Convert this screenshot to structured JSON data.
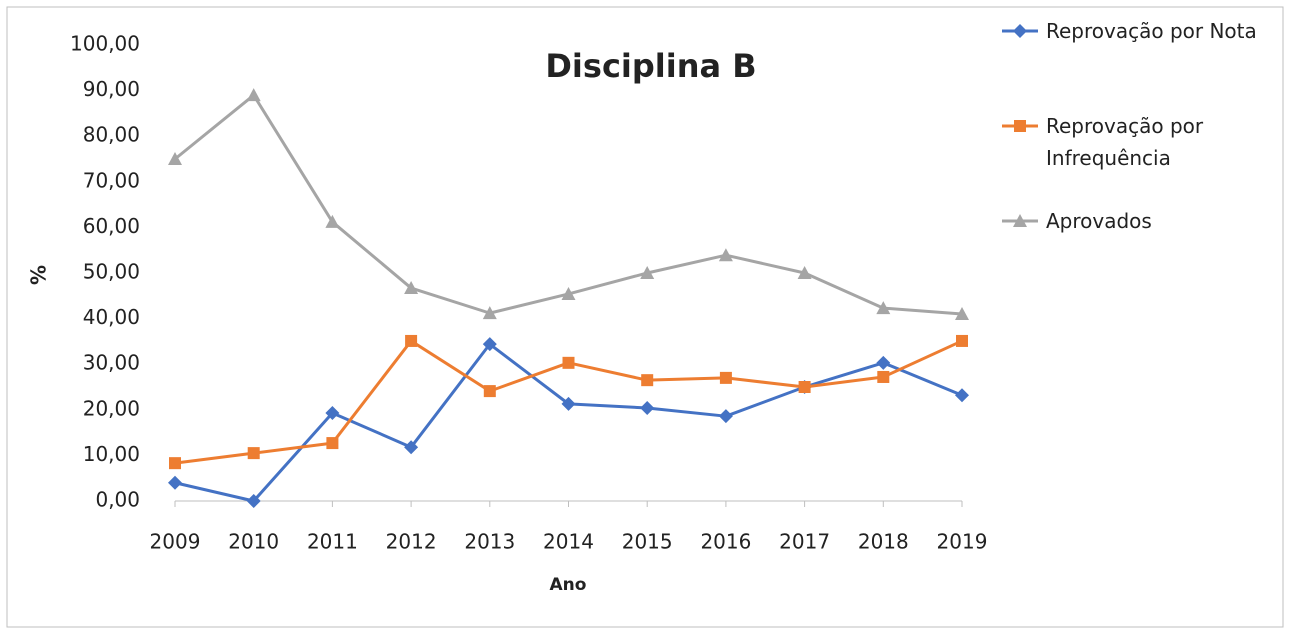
{
  "chart_data": {
    "type": "line",
    "title": "Disciplina B",
    "x_label": "Ano",
    "y_label": "%",
    "categories": [
      "2009",
      "2010",
      "2011",
      "2012",
      "2013",
      "2014",
      "2015",
      "2016",
      "2017",
      "2018",
      "2019"
    ],
    "series": [
      {
        "name": "Reprovação por Nota",
        "color": "#4472c4",
        "marker": "diamond",
        "values": [
          4.0,
          0.0,
          19.3,
          11.8,
          34.4,
          21.3,
          20.4,
          18.6,
          25.0,
          30.3,
          23.2
        ]
      },
      {
        "name": "Reprovação por Infrequência",
        "color": "#ed7d31",
        "marker": "square",
        "values": [
          8.3,
          10.5,
          12.7,
          35.1,
          24.1,
          30.3,
          26.5,
          27.0,
          25.0,
          27.2,
          35.1
        ]
      },
      {
        "name": "Aprovados",
        "color": "#a5a5a5",
        "marker": "triangle",
        "values": [
          75.0,
          89.0,
          61.2,
          46.7,
          41.2,
          45.4,
          50.0,
          53.9,
          50.0,
          42.3,
          41.0
        ]
      }
    ],
    "ylim": [
      0,
      100
    ],
    "yticks": [
      {
        "value": 0,
        "label": "0,00"
      },
      {
        "value": 10,
        "label": "10,00"
      },
      {
        "value": 20,
        "label": "20,00"
      },
      {
        "value": 30,
        "label": "30,00"
      },
      {
        "value": 40,
        "label": "40,00"
      },
      {
        "value": 50,
        "label": "50,00"
      },
      {
        "value": 60,
        "label": "60,00"
      },
      {
        "value": 70,
        "label": "70,00"
      },
      {
        "value": 80,
        "label": "80,00"
      },
      {
        "value": 90,
        "label": "90,00"
      },
      {
        "value": 100,
        "label": "100,00"
      }
    ],
    "grid": false,
    "legend": "right"
  }
}
